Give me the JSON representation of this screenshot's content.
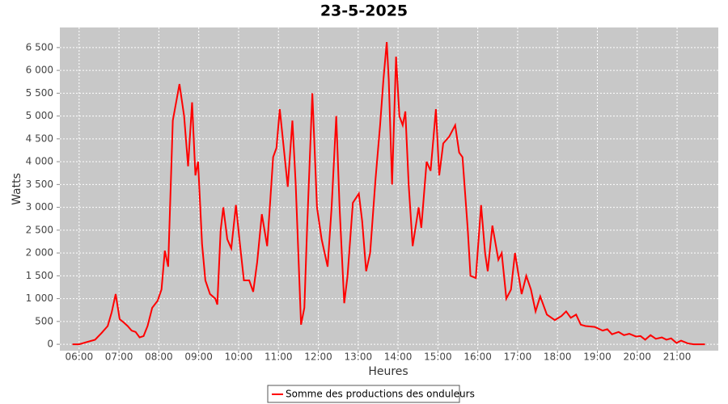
{
  "chart_data": {
    "type": "line",
    "title": "23-5-2025",
    "x_label": "Heures",
    "y_label": "Watts",
    "x": [
      "05:50",
      "06:00",
      "06:12",
      "06:24",
      "06:34",
      "06:43",
      "06:49",
      "06:55",
      "07:01",
      "07:07",
      "07:13",
      "07:19",
      "07:25",
      "07:31",
      "07:37",
      "07:43",
      "07:50",
      "07:58",
      "08:04",
      "08:09",
      "08:14",
      "08:21",
      "08:31",
      "08:38",
      "08:44",
      "08:50",
      "08:55",
      "08:59",
      "09:05",
      "09:10",
      "09:17",
      "09:25",
      "09:28",
      "09:33",
      "09:37",
      "09:43",
      "09:49",
      "09:56",
      "10:02",
      "10:08",
      "10:16",
      "10:22",
      "10:28",
      "10:35",
      "10:43",
      "10:47",
      "10:52",
      "10:57",
      "11:02",
      "11:08",
      "11:14",
      "11:21",
      "11:26",
      "11:34",
      "11:39",
      "11:43",
      "11:51",
      "11:58",
      "12:05",
      "12:14",
      "12:20",
      "12:27",
      "12:32",
      "12:39",
      "12:44",
      "12:52",
      "13:01",
      "13:06",
      "13:12",
      "13:18",
      "13:26",
      "13:33",
      "13:38",
      "13:43",
      "13:46",
      "13:51",
      "13:57",
      "14:02",
      "14:07",
      "14:11",
      "14:16",
      "14:22",
      "14:31",
      "14:35",
      "14:43",
      "14:49",
      "14:57",
      "15:02",
      "15:08",
      "15:17",
      "15:26",
      "15:32",
      "15:37",
      "15:45",
      "15:49",
      "15:57",
      "16:05",
      "16:11",
      "16:15",
      "16:22",
      "16:31",
      "16:36",
      "16:43",
      "16:50",
      "16:56",
      "17:06",
      "17:13",
      "17:20",
      "17:27",
      "17:34",
      "17:44",
      "17:56",
      "18:06",
      "18:13",
      "18:20",
      "18:28",
      "18:35",
      "18:42",
      "18:56",
      "19:08",
      "19:15",
      "19:22",
      "19:32",
      "19:40",
      "19:48",
      "19:58",
      "20:05",
      "20:12",
      "20:20",
      "20:28",
      "20:37",
      "20:44",
      "20:51",
      "20:59",
      "21:06",
      "21:16",
      "21:25",
      "21:42"
    ],
    "series": [
      {
        "name": "Somme des productions des onduleurs",
        "color": "#ff0000",
        "values": [
          0,
          0,
          50,
          100,
          250,
          400,
          700,
          1100,
          550,
          480,
          400,
          300,
          270,
          150,
          180,
          400,
          800,
          950,
          1200,
          2050,
          1700,
          4900,
          5700,
          5000,
          3900,
          5300,
          3700,
          4000,
          2200,
          1400,
          1100,
          1000,
          870,
          2500,
          3000,
          2300,
          2100,
          3050,
          2200,
          1400,
          1400,
          1150,
          1800,
          2850,
          2150,
          3000,
          4100,
          4300,
          5150,
          4300,
          3450,
          4900,
          3500,
          430,
          800,
          2500,
          5500,
          3000,
          2300,
          1700,
          3000,
          5000,
          3000,
          900,
          1500,
          3100,
          3300,
          2700,
          1600,
          2000,
          3600,
          4800,
          5800,
          6620,
          5800,
          3500,
          6300,
          5000,
          4800,
          5100,
          3500,
          2150,
          3000,
          2550,
          4000,
          3800,
          5150,
          3700,
          4400,
          4550,
          4800,
          4200,
          4100,
          2500,
          1500,
          1450,
          3050,
          2000,
          1600,
          2600,
          1850,
          2000,
          1000,
          1200,
          2000,
          1100,
          1500,
          1200,
          720,
          1050,
          650,
          530,
          620,
          720,
          580,
          650,
          430,
          400,
          380,
          300,
          330,
          220,
          270,
          200,
          230,
          170,
          180,
          100,
          200,
          120,
          150,
          100,
          130,
          30,
          80,
          20,
          0,
          0
        ]
      }
    ],
    "xlim": [
      "05:31",
      "22:02"
    ],
    "xticks": [
      "06:00",
      "07:00",
      "08:00",
      "09:00",
      "10:00",
      "11:00",
      "12:00",
      "13:00",
      "14:00",
      "15:00",
      "16:00",
      "17:00",
      "18:00",
      "19:00",
      "20:00",
      "21:00"
    ],
    "ylim": [
      -140,
      6940
    ],
    "yticks": [
      0,
      500,
      {
        "value": 1000,
        "label": "1 000"
      },
      {
        "value": 1500,
        "label": "1 500"
      },
      {
        "value": 2000,
        "label": "2 000"
      },
      {
        "value": 2500,
        "label": "2 500"
      },
      {
        "value": 3000,
        "label": "3 000"
      },
      {
        "value": 3500,
        "label": "3 500"
      },
      {
        "value": 4000,
        "label": "4 000"
      },
      {
        "value": 4500,
        "label": "4 500"
      },
      {
        "value": 5000,
        "label": "5 000"
      },
      {
        "value": 5500,
        "label": "5 500"
      },
      {
        "value": 6000,
        "label": "6 000"
      },
      {
        "value": 6500,
        "label": "6 500"
      }
    ],
    "grid": true
  }
}
